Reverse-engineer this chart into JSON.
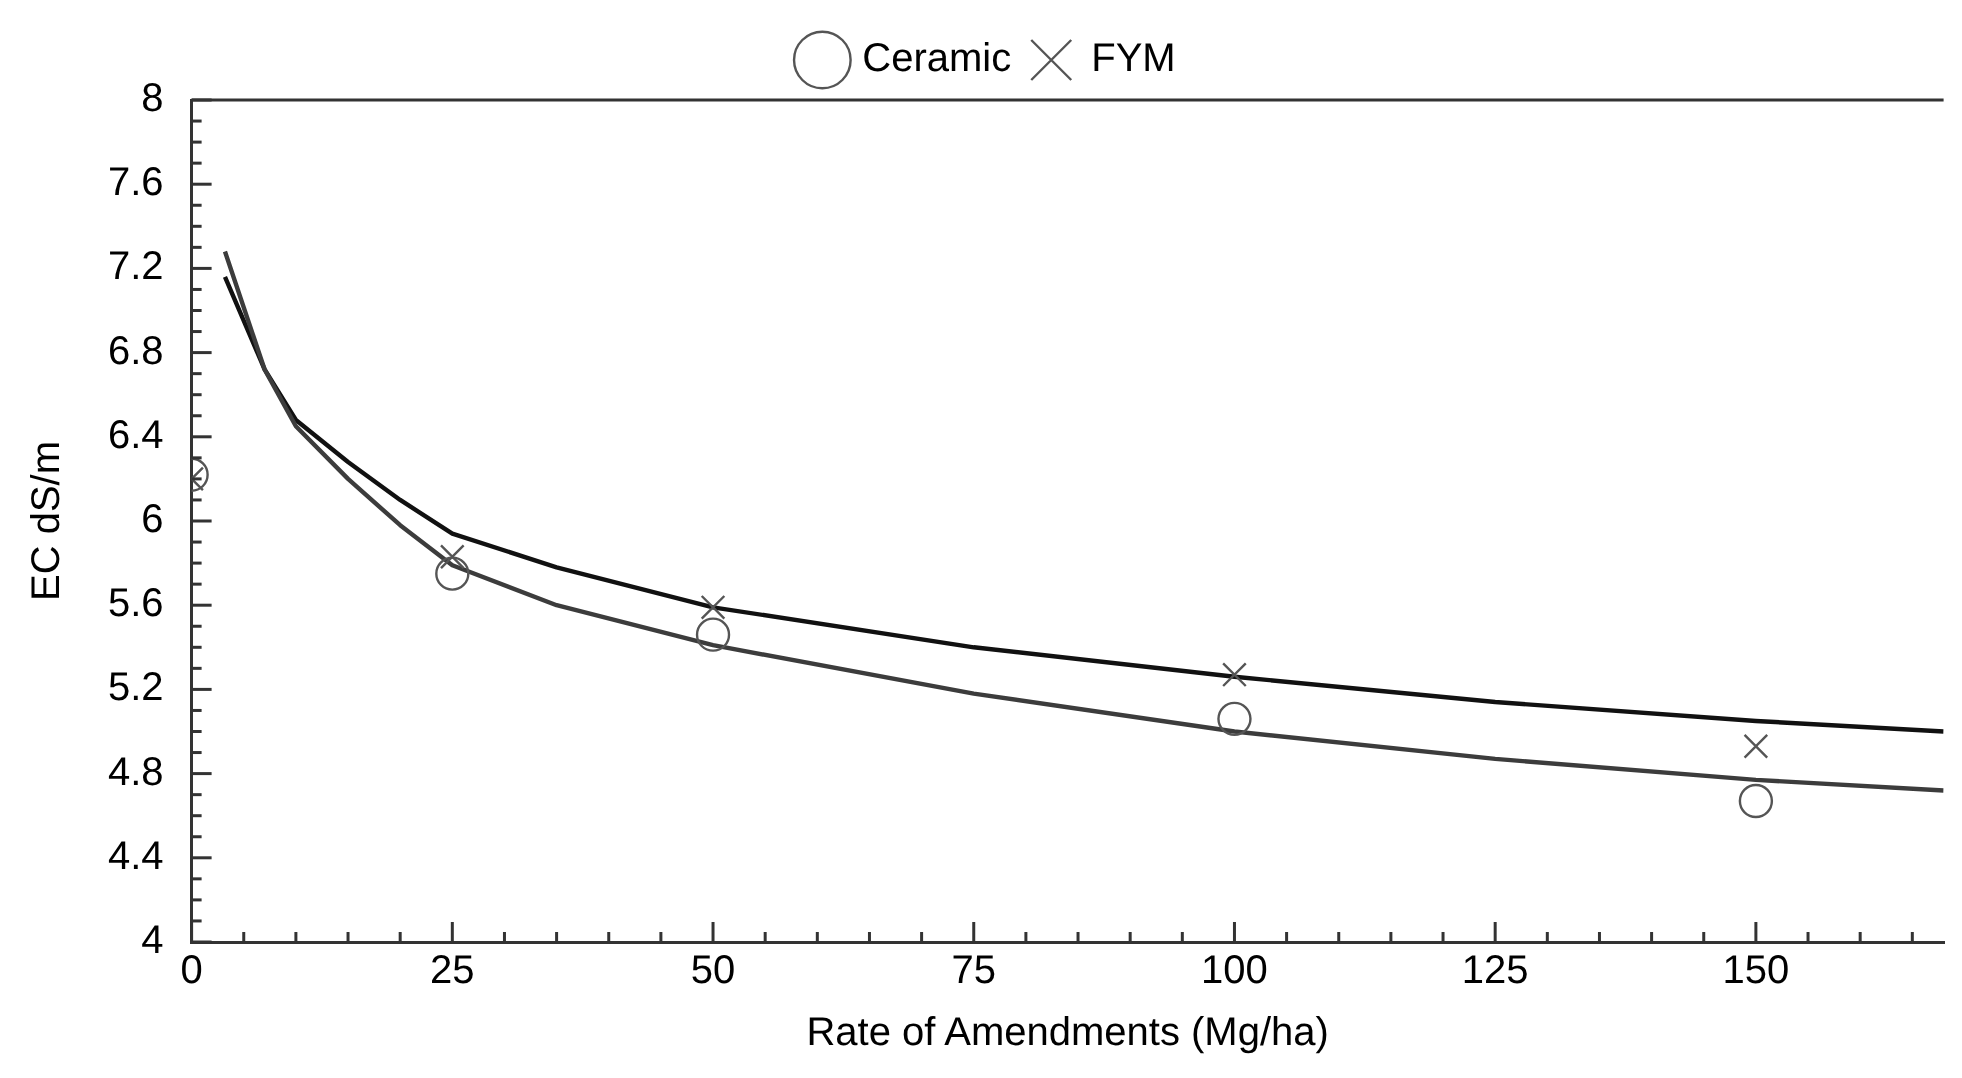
{
  "chart_data": {
    "type": "line",
    "xlabel": "Rate of Amendments (Mg/ha)",
    "ylabel": "EC dS/m",
    "series": [
      {
        "name": "Ceramic",
        "type": "scatter",
        "marker": "circle",
        "color": "#555555",
        "x": [
          0,
          25,
          50,
          100,
          150
        ],
        "values": [
          6.22,
          5.75,
          5.46,
          5.06,
          4.67
        ]
      },
      {
        "name": "FYM",
        "type": "scatter",
        "marker": "cross",
        "color": "#555555",
        "x": [
          0,
          25,
          50,
          100,
          150
        ],
        "values": [
          6.2,
          5.83,
          5.59,
          5.27,
          4.93
        ]
      },
      {
        "marker": "none",
        "color": "#3c3c3c",
        "x": [
          3.2,
          7,
          10,
          15,
          20,
          25,
          35,
          50,
          75,
          100,
          125,
          150,
          168
        ],
        "values": [
          7.28,
          6.72,
          6.45,
          6.2,
          5.98,
          5.79,
          5.6,
          5.41,
          5.18,
          5.0,
          4.87,
          4.77,
          4.72
        ]
      },
      {
        "marker": "none",
        "color": "#111111",
        "x": [
          3.2,
          7,
          10,
          15,
          20,
          25,
          35,
          50,
          75,
          100,
          125,
          150,
          168
        ],
        "values": [
          7.16,
          6.72,
          6.48,
          6.28,
          6.1,
          5.94,
          5.78,
          5.59,
          5.4,
          5.26,
          5.14,
          5.05,
          5.0
        ]
      }
    ],
    "xlim": [
      0,
      168
    ],
    "xticks": [
      0,
      {
        "value": 5,
        "label": null
      },
      {
        "value": 10,
        "label": null
      },
      {
        "value": 15,
        "label": null
      },
      {
        "value": 20,
        "label": null
      },
      25,
      {
        "value": 30,
        "label": null
      },
      {
        "value": 35,
        "label": null
      },
      {
        "value": 40,
        "label": null
      },
      {
        "value": 45,
        "label": null
      },
      50,
      {
        "value": 55,
        "label": null
      },
      {
        "value": 60,
        "label": null
      },
      {
        "value": 65,
        "label": null
      },
      {
        "value": 70,
        "label": null
      },
      75,
      {
        "value": 80,
        "label": null
      },
      {
        "value": 85,
        "label": null
      },
      {
        "value": 90,
        "label": null
      },
      {
        "value": 95,
        "label": null
      },
      100,
      {
        "value": 105,
        "label": null
      },
      {
        "value": 110,
        "label": null
      },
      {
        "value": 115,
        "label": null
      },
      {
        "value": 120,
        "label": null
      },
      125,
      {
        "value": 130,
        "label": null
      },
      {
        "value": 135,
        "label": null
      },
      {
        "value": 140,
        "label": null
      },
      {
        "value": 145,
        "label": null
      },
      150,
      {
        "value": 155,
        "label": null
      },
      {
        "value": 160,
        "label": null
      },
      {
        "value": 165,
        "label": null
      }
    ],
    "ylim": [
      4,
      8
    ],
    "yticks": [
      4,
      {
        "value": 4.1,
        "label": null
      },
      {
        "value": 4.2,
        "label": null
      },
      {
        "value": 4.3,
        "label": null
      },
      4.4,
      {
        "value": 4.5,
        "label": null
      },
      {
        "value": 4.6,
        "label": null
      },
      {
        "value": 4.7,
        "label": null
      },
      4.8,
      {
        "value": 4.9,
        "label": null
      },
      {
        "value": 5,
        "label": null
      },
      {
        "value": 5.1,
        "label": null
      },
      5.2,
      {
        "value": 5.3,
        "label": null
      },
      {
        "value": 5.4,
        "label": null
      },
      {
        "value": 5.5,
        "label": null
      },
      5.6,
      {
        "value": 5.7,
        "label": null
      },
      {
        "value": 5.8,
        "label": null
      },
      {
        "value": 5.9,
        "label": null
      },
      6,
      {
        "value": 6.1,
        "label": null
      },
      {
        "value": 6.2,
        "label": null
      },
      {
        "value": 6.3,
        "label": null
      },
      6.4,
      {
        "value": 6.5,
        "label": null
      },
      {
        "value": 6.6,
        "label": null
      },
      {
        "value": 6.7,
        "label": null
      },
      6.8,
      {
        "value": 6.9,
        "label": null
      },
      {
        "value": 7,
        "label": null
      },
      {
        "value": 7.1,
        "label": null
      },
      7.2,
      {
        "value": 7.3,
        "label": null
      },
      {
        "value": 7.4,
        "label": null
      },
      {
        "value": 7.5,
        "label": null
      },
      7.6,
      {
        "value": 7.7,
        "label": null
      },
      {
        "value": 7.8,
        "label": null
      },
      {
        "value": 7.9,
        "label": null
      },
      8
    ],
    "grid": false,
    "legend": "top",
    "line_style": "solid"
  }
}
